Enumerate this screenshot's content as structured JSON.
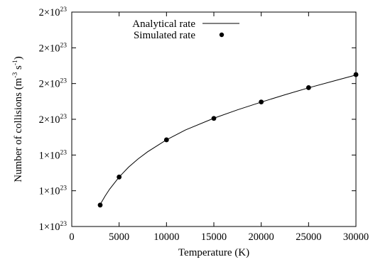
{
  "chart_data": {
    "type": "line",
    "title": "",
    "xlabel": "Temperature (K)",
    "ylabel": {
      "prefix": "Number of collisions (m",
      "exp1": "-3",
      "mid": " s",
      "exp2": "-1",
      "suffix": ")"
    },
    "xlim": [
      0,
      30000
    ],
    "ylim": [
      0,
      12
    ],
    "x_ticks": [
      "0",
      "5000",
      "10000",
      "15000",
      "20000",
      "25000",
      "30000"
    ],
    "y_ticks": [
      {
        "mantissa": "1×10",
        "exp": "23"
      },
      {
        "mantissa": "1×10",
        "exp": "23"
      },
      {
        "mantissa": "1×10",
        "exp": "23"
      },
      {
        "mantissa": "2×10",
        "exp": "23"
      },
      {
        "mantissa": "2×10",
        "exp": "23"
      },
      {
        "mantissa": "2×10",
        "exp": "23"
      },
      {
        "mantissa": "2×10",
        "exp": "23"
      }
    ],
    "legend_position": "top-left",
    "series": [
      {
        "name": "Analytical rate",
        "style": "line",
        "x": [
          3000,
          3500,
          4000,
          5000,
          6000,
          7000,
          8000,
          10000,
          12000,
          15000,
          17500,
          20000,
          22500,
          25000,
          27500,
          30000
        ],
        "y": [
          1.23,
          1.69,
          2.09,
          2.77,
          3.32,
          3.78,
          4.18,
          4.85,
          5.4,
          6.06,
          6.53,
          6.96,
          7.37,
          7.76,
          8.12,
          8.48
        ]
      },
      {
        "name": "Simulated rate",
        "style": "points",
        "x": [
          3000,
          5000,
          10000,
          15000,
          20000,
          25000,
          30000
        ],
        "y": [
          1.2,
          2.77,
          4.85,
          6.05,
          6.97,
          7.77,
          8.5
        ]
      }
    ]
  }
}
